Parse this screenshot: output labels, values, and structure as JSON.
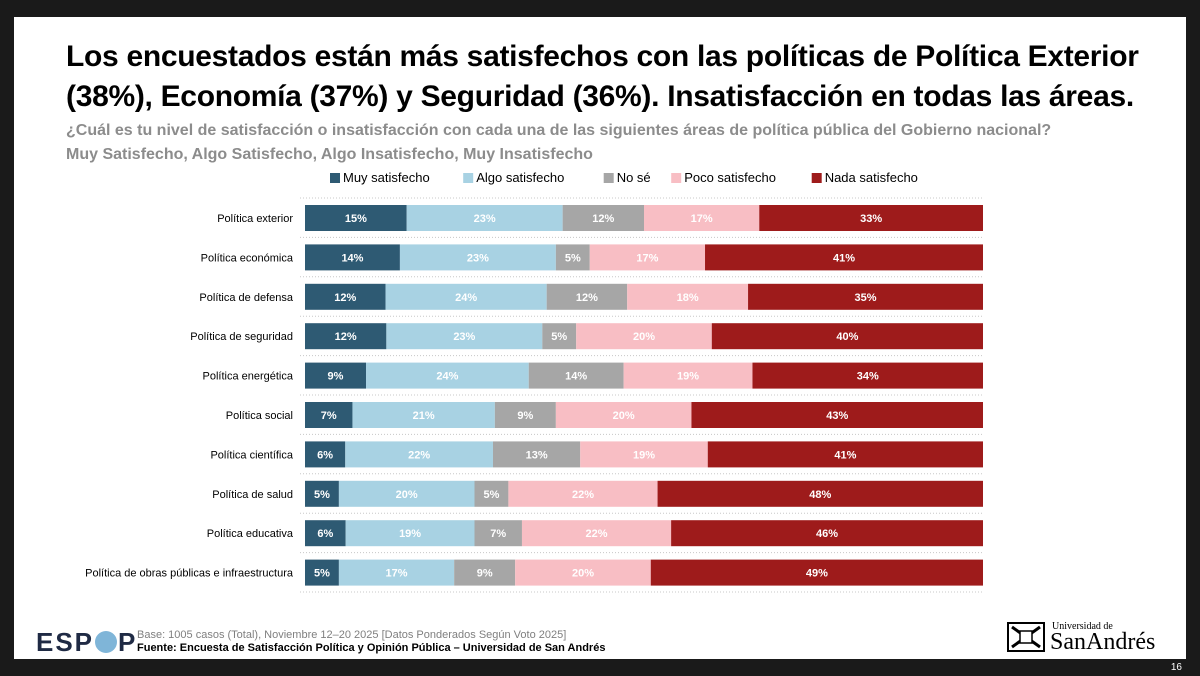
{
  "title": "Los encuestados están más satisfechos con las políticas de Política Exterior (38%), Economía (37%) y Seguridad (36%). Insatisfacción en todas las áreas.",
  "subtitle_question": "¿Cuál es tu nivel de satisfacción o insatisfacción con cada una de las siguientes áreas de política pública del Gobierno nacional?",
  "subtitle_scale": "Muy Satisfecho, Algo Satisfecho, Algo Insatisfecho, Muy Insatisfecho",
  "footer": {
    "base": "Base: 1005 casos (Total), Noviembre 12–20 2025 [Datos Ponderados Según Voto 2025]",
    "source": "Fuente: Encuesta de Satisfacción Política y Opinión Pública – Universidad de San Andrés"
  },
  "logos": {
    "espop_left": "ESP",
    "espop_right": "P",
    "university_small": "Universidad de",
    "university_big": "SanAndrés"
  },
  "page_number": "16",
  "chart_data": {
    "type": "bar",
    "orientation": "horizontal",
    "stacked": true,
    "xlim": [
      0,
      100
    ],
    "legend_position": "top",
    "categories": [
      "Política exterior",
      "Política económica",
      "Política de defensa",
      "Política de seguridad",
      "Política energética",
      "Política social",
      "Política científica",
      "Política de salud",
      "Política educativa",
      "Política de obras públicas e infraestructura"
    ],
    "series": [
      {
        "name": "Muy satisfecho",
        "color": "#2e5a73",
        "label_color": "#ffffff",
        "values": [
          15,
          14,
          12,
          12,
          9,
          7,
          6,
          5,
          6,
          5
        ]
      },
      {
        "name": "Algo satisfecho",
        "color": "#a8d2e3",
        "label_color": "#ffffff",
        "values": [
          23,
          23,
          24,
          23,
          24,
          21,
          22,
          20,
          19,
          17
        ]
      },
      {
        "name": "No sé",
        "color": "#a6a6a6",
        "label_color": "#ffffff",
        "values": [
          12,
          5,
          12,
          5,
          14,
          9,
          13,
          5,
          7,
          9
        ]
      },
      {
        "name": "Poco satisfecho",
        "color": "#f8bec4",
        "label_color": "#ffffff",
        "values": [
          17,
          17,
          18,
          20,
          19,
          20,
          19,
          22,
          22,
          20
        ]
      },
      {
        "name": "Nada satisfecho",
        "color": "#9e1b1b",
        "label_color": "#ffffff",
        "values": [
          33,
          41,
          35,
          40,
          34,
          43,
          41,
          48,
          46,
          49
        ]
      }
    ]
  }
}
